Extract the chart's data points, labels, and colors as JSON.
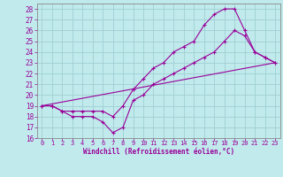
{
  "xlabel": "Windchill (Refroidissement éolien,°C)",
  "background_color": "#c0eaec",
  "grid_color": "#a0cfd4",
  "line_color": "#990099",
  "spine_color": "#888888",
  "xlim": [
    -0.5,
    23.5
  ],
  "ylim": [
    16,
    28.5
  ],
  "xticks": [
    0,
    1,
    2,
    3,
    4,
    5,
    6,
    7,
    8,
    9,
    10,
    11,
    12,
    13,
    14,
    15,
    16,
    17,
    18,
    19,
    20,
    21,
    22,
    23
  ],
  "yticks": [
    16,
    17,
    18,
    19,
    20,
    21,
    22,
    23,
    24,
    25,
    26,
    27,
    28
  ],
  "line1_x": [
    0,
    1,
    2,
    3,
    4,
    5,
    6,
    7,
    8,
    9,
    10,
    11,
    12,
    13,
    14,
    15,
    16,
    17,
    18,
    19,
    20,
    21,
    22,
    23
  ],
  "line1_y": [
    19,
    19,
    18.5,
    18,
    18,
    18,
    17.5,
    16.5,
    17,
    19.5,
    20,
    21,
    21.5,
    22,
    22.5,
    23,
    23.5,
    24,
    25,
    26,
    25.5,
    24,
    23.5,
    23
  ],
  "line2_x": [
    0,
    1,
    2,
    3,
    4,
    5,
    6,
    7,
    8,
    9,
    10,
    11,
    12,
    13,
    14,
    15,
    16,
    17,
    18,
    19,
    20,
    21,
    22,
    23
  ],
  "line2_y": [
    19,
    19,
    18.5,
    18.5,
    18.5,
    18.5,
    18.5,
    18,
    19,
    20.5,
    21.5,
    22.5,
    23,
    24,
    24.5,
    25,
    26.5,
    27.5,
    28,
    28,
    26,
    24,
    23.5,
    23
  ],
  "line3_x": [
    0,
    23
  ],
  "line3_y": [
    19,
    23
  ],
  "xlabel_fontsize": 5.5,
  "tick_fontsize": 5,
  "ytick_fontsize": 5.5
}
